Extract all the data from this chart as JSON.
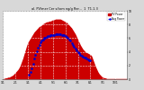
{
  "title": "al. PV/mer Cer s/tom ng/g Rer...  1  T1.1.3",
  "bg_color": "#d8d8d8",
  "plot_bg": "#ffffff",
  "grid_color": "#ffffff",
  "bar_color": "#cc0000",
  "avg_color": "#0000cc",
  "legend_pv_color": "#0000ee",
  "legend_avg_color": "#cc0000",
  "pv_data": [
    1,
    1,
    2,
    2,
    3,
    3,
    4,
    5,
    6,
    8,
    10,
    12,
    14,
    17,
    21,
    26,
    31,
    37,
    43,
    49,
    54,
    57,
    60,
    63,
    66,
    69,
    71,
    73,
    75,
    77,
    78,
    79,
    81,
    82,
    83,
    84,
    84,
    85,
    85,
    86,
    87,
    87,
    88,
    88,
    88,
    88,
    88,
    87,
    86,
    85,
    84,
    83,
    81,
    79,
    77,
    75,
    72,
    69,
    66,
    62,
    58,
    54,
    50,
    47,
    44,
    42,
    40,
    39,
    38,
    37,
    36,
    34,
    29,
    24,
    19,
    15,
    11,
    8,
    6,
    4,
    3,
    2,
    2,
    1,
    1,
    1,
    1,
    1,
    1,
    1,
    1,
    1,
    1,
    1,
    1,
    1,
    1,
    1,
    1,
    1
  ],
  "avg_data": [
    null,
    null,
    null,
    null,
    null,
    null,
    null,
    null,
    null,
    null,
    null,
    null,
    null,
    null,
    null,
    null,
    null,
    null,
    null,
    null,
    null,
    6,
    10,
    16,
    23,
    30,
    36,
    41,
    46,
    50,
    54,
    56,
    58,
    60,
    61,
    62,
    63,
    63,
    64,
    64,
    65,
    65,
    66,
    66,
    66,
    66,
    66,
    65,
    65,
    64,
    63,
    62,
    60,
    58,
    56,
    53,
    50,
    47,
    45,
    42,
    40,
    38,
    36,
    34,
    33,
    32,
    31,
    30,
    29,
    28,
    27,
    null,
    null,
    null,
    null,
    null,
    null,
    null,
    null,
    null,
    null,
    null,
    null,
    null,
    null,
    null,
    null,
    null,
    null,
    null,
    null,
    null,
    null,
    null,
    null,
    null,
    null,
    null,
    null,
    null
  ],
  "n": 100,
  "x_tick_pos": [
    0,
    10,
    20,
    30,
    40,
    50,
    60,
    70,
    80,
    90
  ],
  "x_labels": [
    "1/1",
    "2/1",
    "3/1",
    "4/1",
    "5/1",
    "6/1",
    "7/1",
    "8/1",
    "9/1",
    "10/1"
  ],
  "y_tick_pos": [
    0,
    20,
    40,
    60,
    80,
    100
  ],
  "y_labels_right": [
    "0",
    "2",
    "4",
    "6",
    "8",
    "10"
  ],
  "legend_entries": [
    "PV Power",
    "Avg Power"
  ]
}
